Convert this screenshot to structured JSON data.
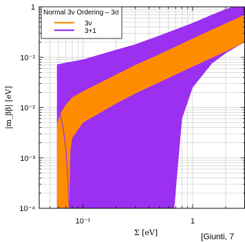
{
  "chart_data": {
    "type": "area",
    "title": "",
    "xlabel": "Σ   [eV]",
    "ylabel": "|m_ββ|   [eV]",
    "xscale": "log",
    "yscale": "log",
    "xlim": [
      0.04,
      3
    ],
    "ylim": [
      0.0001,
      1
    ],
    "grid": true,
    "legend_title": "Normal 3ν Ordering – 3σ",
    "legend_placement": "top-left",
    "x_ticks": [
      {
        "value": 0.1,
        "label": "10⁻¹"
      },
      {
        "value": 1,
        "label": "1"
      }
    ],
    "y_ticks": [
      {
        "value": 1,
        "label": "1"
      },
      {
        "value": 0.1,
        "label": "10⁻¹"
      },
      {
        "value": 0.01,
        "label": "10⁻²"
      },
      {
        "value": 0.001,
        "label": "10⁻³"
      },
      {
        "value": 0.0001,
        "label": "10⁻⁴"
      }
    ],
    "series": [
      {
        "name": "3+1",
        "color": "#9b30f0",
        "upper": [
          [
            0.058,
            0.072
          ],
          [
            0.07,
            0.078
          ],
          [
            0.1,
            0.09
          ],
          [
            0.2,
            0.14
          ],
          [
            0.3,
            0.18
          ],
          [
            0.5,
            0.27
          ],
          [
            1.0,
            0.48
          ],
          [
            1.5,
            0.7
          ],
          [
            2.0,
            0.9
          ],
          [
            2.3,
            1.0
          ]
        ],
        "lower_right": [
          [
            0.45,
            0.0001
          ],
          [
            0.55,
            0.0001
          ],
          [
            0.68,
            0.0001
          ],
          [
            0.8,
            0.006
          ],
          [
            1.0,
            0.025
          ],
          [
            1.5,
            0.075
          ],
          [
            2.0,
            0.12
          ],
          [
            2.5,
            0.16
          ],
          [
            3.0,
            0.2
          ]
        ],
        "lower_left_x": 0.058,
        "lower_left_y": 0.0001
      },
      {
        "name": "3ν",
        "color": "#ff8c00",
        "upper": [
          [
            0.058,
            0.0045
          ],
          [
            0.062,
            0.0075
          ],
          [
            0.07,
            0.0115
          ],
          [
            0.08,
            0.016
          ],
          [
            0.1,
            0.021
          ],
          [
            0.2,
            0.045
          ],
          [
            0.3,
            0.07
          ],
          [
            0.5,
            0.115
          ],
          [
            1.0,
            0.235
          ],
          [
            2.0,
            0.47
          ],
          [
            3.0,
            0.7
          ]
        ],
        "lower": [
          [
            0.058,
            0.0001
          ],
          [
            0.075,
            0.0001
          ],
          [
            0.077,
            0.0015
          ],
          [
            0.08,
            0.0025
          ],
          [
            0.1,
            0.005
          ],
          [
            0.2,
            0.012
          ],
          [
            0.3,
            0.019
          ],
          [
            0.5,
            0.032
          ],
          [
            1.0,
            0.065
          ],
          [
            2.0,
            0.13
          ],
          [
            3.0,
            0.2
          ]
        ],
        "dip_curve": [
          [
            0.058,
            0.0098
          ],
          [
            0.062,
            0.0075
          ],
          [
            0.066,
            0.004
          ],
          [
            0.07,
            0.0015
          ],
          [
            0.072,
            0.0006
          ],
          [
            0.075,
            0.0001
          ]
        ]
      }
    ]
  },
  "credit": "[Giunti, 7"
}
